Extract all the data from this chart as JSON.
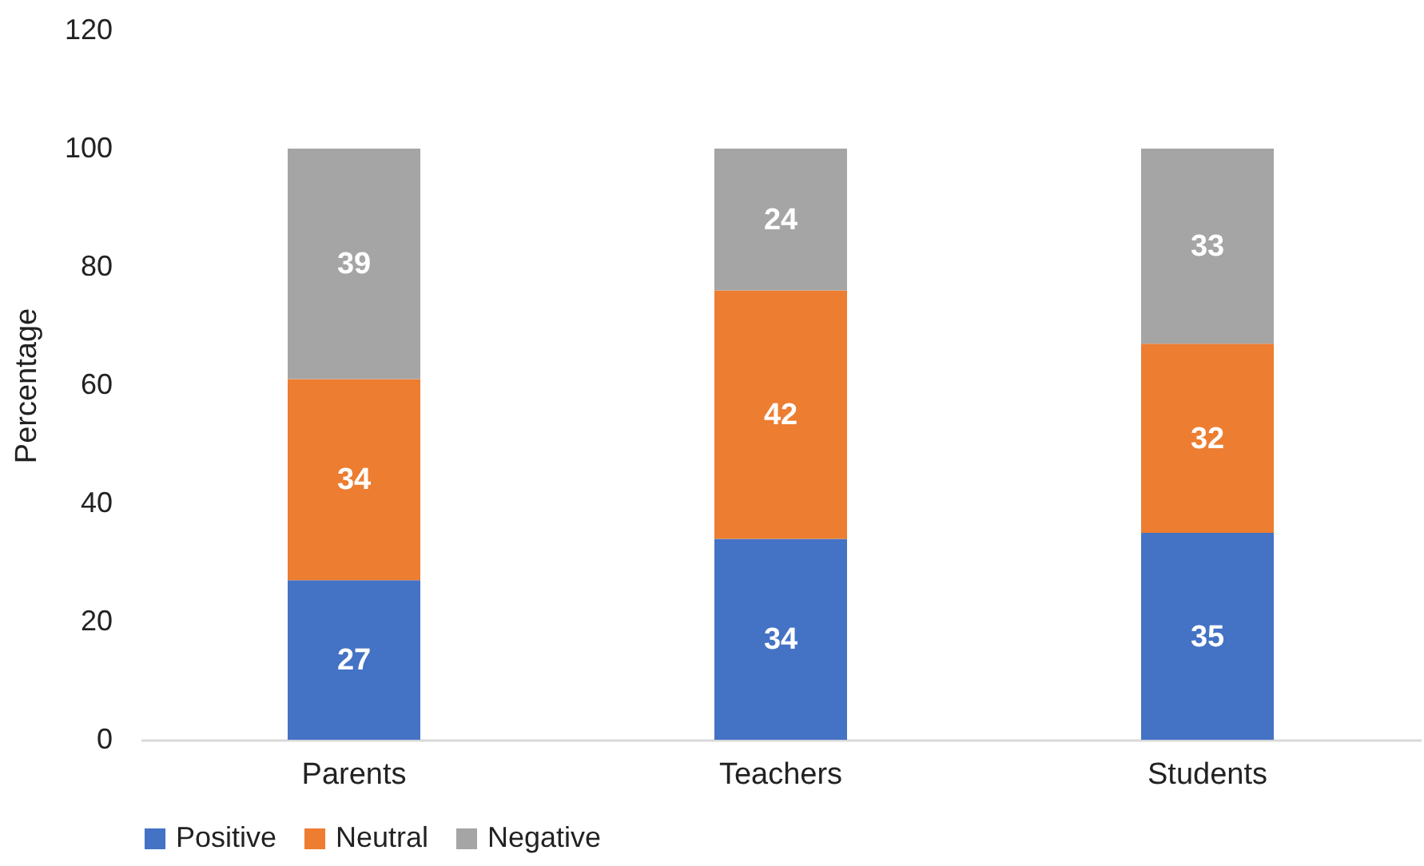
{
  "chart_data": {
    "type": "bar",
    "stacked": true,
    "ylabel": "Percentage",
    "categories": [
      "Parents",
      "Teachers",
      "Students"
    ],
    "series": [
      {
        "name": "Positive",
        "color": "#4472c4",
        "values": [
          27,
          34,
          35
        ]
      },
      {
        "name": "Neutral",
        "color": "#ed7d31",
        "values": [
          34,
          42,
          32
        ]
      },
      {
        "name": "Negative",
        "color": "#a5a5a5",
        "values": [
          39,
          24,
          33
        ]
      }
    ],
    "ylim": [
      0,
      120
    ],
    "yticks": [
      0,
      20,
      40,
      60,
      80,
      100,
      120
    ],
    "grid": false,
    "legend": "bottom",
    "data_labels": true
  }
}
